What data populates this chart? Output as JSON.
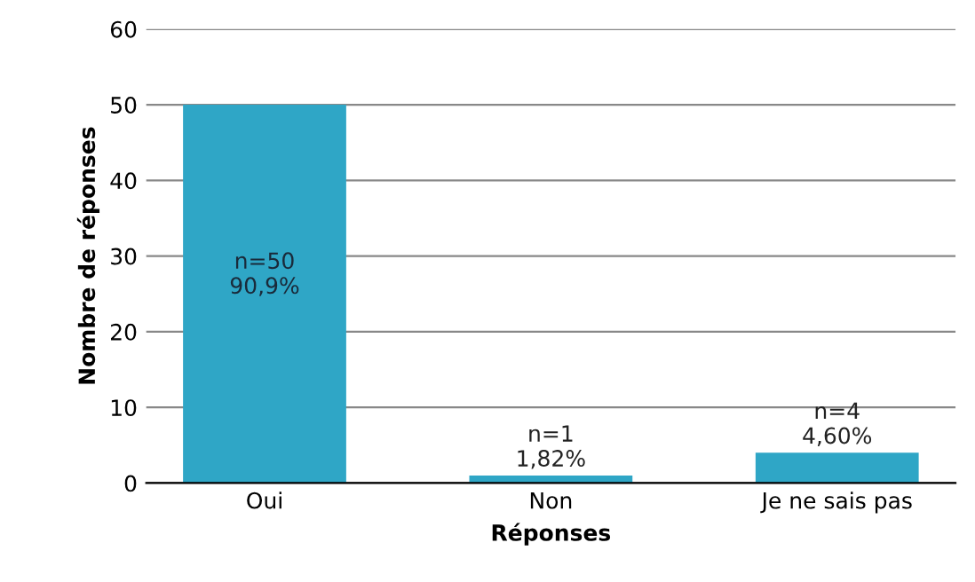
{
  "chart_data": {
    "type": "bar",
    "xlabel": "Réponses",
    "ylabel": "Nombre de réponses",
    "categories": [
      "Oui",
      "Non",
      "Je ne sais pas"
    ],
    "values": [
      50,
      1,
      4
    ],
    "color": "#2fa6c6",
    "value_labels": [
      "n=50\n90,9%",
      "n=1\n1,82%",
      "n=4\n4,60%"
    ],
    "ylim": [
      0,
      60
    ],
    "yticks": [
      0,
      10,
      20,
      30,
      40,
      50,
      60
    ],
    "grid": "y"
  }
}
